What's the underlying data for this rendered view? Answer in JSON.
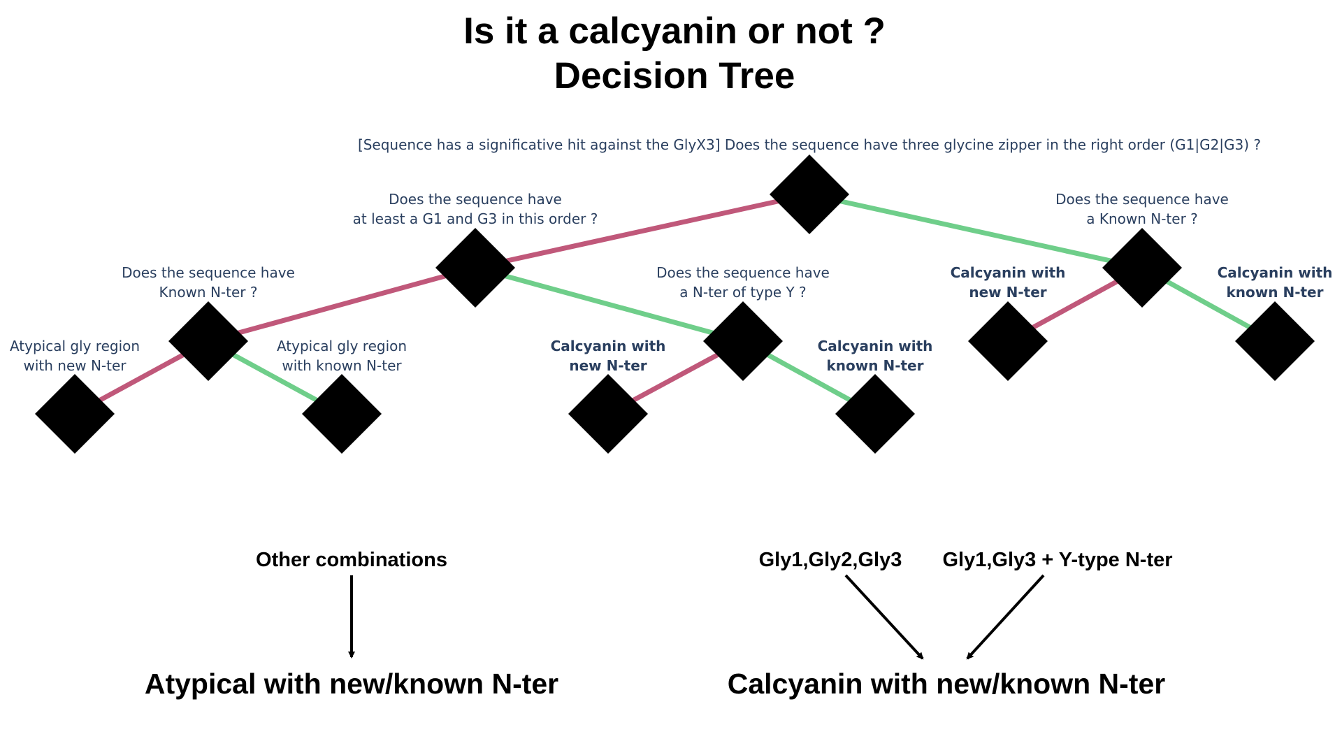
{
  "title": {
    "line1": "Is it a calcyanin or not ?",
    "line2": "Decision Tree"
  },
  "colors": {
    "no_edge": "#c0587a",
    "yes_edge": "#6fce8a",
    "node": "#000000",
    "label_text": "#2a3f5f"
  },
  "nodes": {
    "root": {
      "question": [
        "[Sequence has a significative hit against the GlyX3] Does the sequence have three glycine zipper in the right order (G1|G2|G3) ?"
      ]
    },
    "g1g3": {
      "question": [
        "Does the sequence have",
        "at least a G1 and G3 in this order ?"
      ]
    },
    "known_nter_a": {
      "question": [
        "Does the sequence have",
        "Known N-ter ?"
      ]
    },
    "type_y": {
      "question": [
        "Does the sequence have",
        "a N-ter of type Y ?"
      ]
    },
    "known_nter_b": {
      "question": [
        "Does the sequence have",
        "a Known N-ter ?"
      ]
    },
    "leaf_atyp_new": {
      "label": [
        "Atypical gly region",
        "with new N-ter"
      ]
    },
    "leaf_atyp_known": {
      "label": [
        "Atypical gly region",
        "with known N-ter"
      ]
    },
    "leaf_calc_new_1": {
      "label": [
        "Calcyanin with",
        "new N-ter"
      ]
    },
    "leaf_calc_known_1": {
      "label": [
        "Calcyanin with",
        "known N-ter"
      ]
    },
    "leaf_calc_new_2": {
      "label": [
        "Calcyanin with",
        "new N-ter"
      ]
    },
    "leaf_calc_known_2": {
      "label": [
        "Calcyanin with",
        "known N-ter"
      ]
    }
  },
  "edges": [
    {
      "from": "root",
      "to": "g1g3",
      "branch": "no"
    },
    {
      "from": "root",
      "to": "known_nter_b",
      "branch": "yes"
    },
    {
      "from": "g1g3",
      "to": "known_nter_a",
      "branch": "no"
    },
    {
      "from": "g1g3",
      "to": "type_y",
      "branch": "yes"
    },
    {
      "from": "known_nter_a",
      "to": "leaf_atyp_new",
      "branch": "no"
    },
    {
      "from": "known_nter_a",
      "to": "leaf_atyp_known",
      "branch": "yes"
    },
    {
      "from": "type_y",
      "to": "leaf_calc_new_1",
      "branch": "no"
    },
    {
      "from": "type_y",
      "to": "leaf_calc_known_1",
      "branch": "yes"
    },
    {
      "from": "known_nter_b",
      "to": "leaf_calc_new_2",
      "branch": "no"
    },
    {
      "from": "known_nter_b",
      "to": "leaf_calc_known_2",
      "branch": "yes"
    }
  ],
  "summary": {
    "left_caption": "Other combinations",
    "left_result": "Atypical with new/known N-ter",
    "right_caption_1": "Gly1,Gly2,Gly3",
    "right_caption_2": "Gly1,Gly3 + Y-type N-ter",
    "right_result": "Calcyanin with new/known N-ter"
  }
}
